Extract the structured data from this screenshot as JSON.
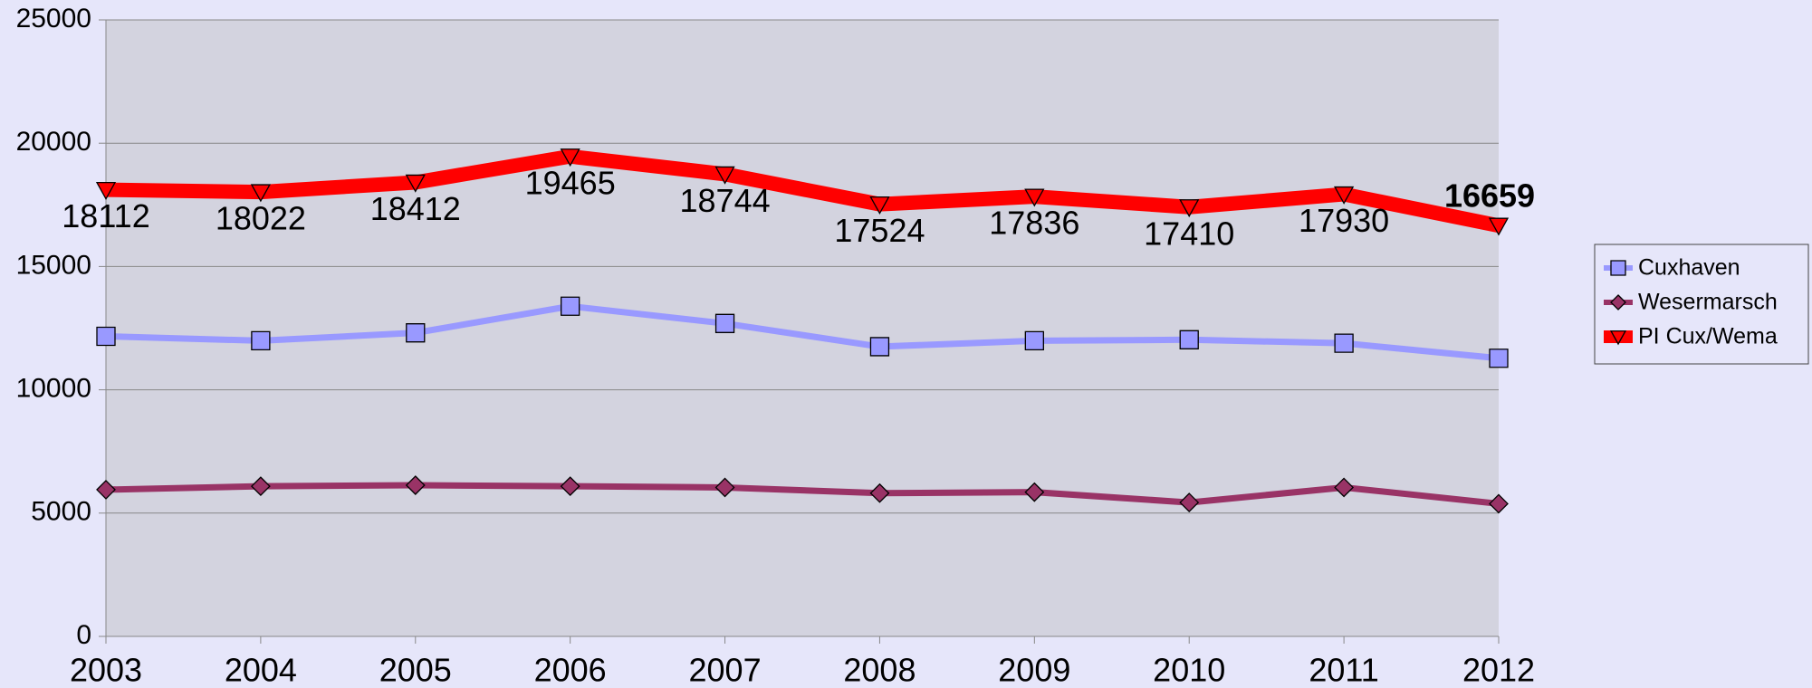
{
  "chart_data": {
    "type": "line",
    "categories": [
      "2003",
      "2004",
      "2005",
      "2006",
      "2007",
      "2008",
      "2009",
      "2010",
      "2011",
      "2012"
    ],
    "series": [
      {
        "name": "Cuxhaven",
        "color": "#9999ff",
        "marker": "square",
        "values": [
          12170,
          11990,
          12310,
          13390,
          12690,
          11750,
          11990,
          12030,
          11890,
          11280
        ]
      },
      {
        "name": "Wesermarsch",
        "color": "#993366",
        "marker": "diamond",
        "values": [
          5950,
          6090,
          6130,
          6090,
          6040,
          5810,
          5850,
          5430,
          6040,
          5380
        ]
      },
      {
        "name": "PI Cux/Wema",
        "color": "#ff0000",
        "marker": "triangle-down",
        "values": [
          18112,
          18022,
          18412,
          19465,
          18744,
          17524,
          17836,
          17410,
          17930,
          16659
        ]
      }
    ],
    "ylim": [
      0,
      25000
    ],
    "yticks": [
      0,
      5000,
      10000,
      15000,
      20000,
      25000
    ],
    "grid": true,
    "legend": "right"
  }
}
